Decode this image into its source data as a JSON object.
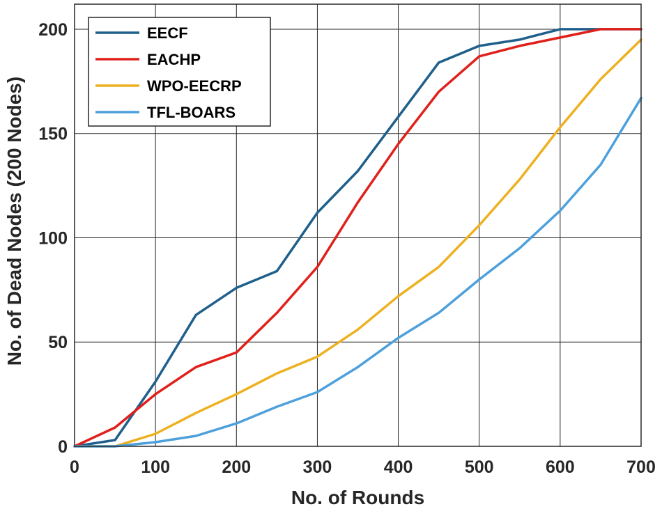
{
  "chart_data": {
    "type": "line",
    "title": "",
    "xlabel": "No. of Rounds",
    "ylabel": "No. of Dead Nodes (200 Nodes)",
    "xlim": [
      0,
      700
    ],
    "ylim": [
      0,
      212
    ],
    "xticks": [
      0,
      100,
      200,
      300,
      400,
      500,
      600,
      700
    ],
    "yticks": [
      0,
      50,
      100,
      150,
      200
    ],
    "grid": true,
    "legend_position": "top-left",
    "x": [
      0,
      50,
      100,
      150,
      200,
      250,
      300,
      350,
      400,
      450,
      500,
      550,
      600,
      650,
      700
    ],
    "series": [
      {
        "name": "EECF",
        "color": "#1F5F8B",
        "values": [
          0,
          3,
          31,
          63,
          76,
          84,
          112,
          132,
          158,
          184,
          192,
          195,
          200,
          200,
          200
        ]
      },
      {
        "name": "EACHP",
        "color": "#E0201B",
        "values": [
          0,
          9,
          25,
          38,
          45,
          64,
          86,
          117,
          145,
          170,
          187,
          192,
          196,
          200,
          200
        ]
      },
      {
        "name": "WPO-EECRP",
        "color": "#EDB120",
        "values": [
          0,
          0,
          6,
          16,
          25,
          35,
          43,
          56,
          72,
          86,
          106,
          128,
          153,
          176,
          195
        ]
      },
      {
        "name": "TFL-BOARS",
        "color": "#4DA0DC",
        "values": [
          0,
          0,
          2,
          5,
          11,
          19,
          26,
          38,
          52,
          64,
          80,
          95,
          113,
          135,
          167
        ]
      }
    ]
  }
}
